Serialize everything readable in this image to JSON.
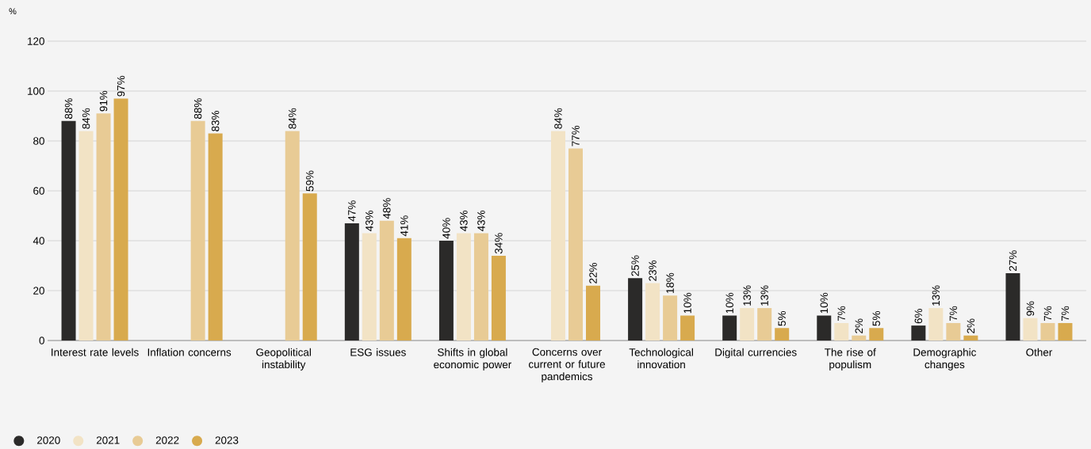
{
  "chart_data": {
    "type": "bar",
    "ylabel": "%",
    "categories": [
      "Interest rate levels",
      "Inflation concerns",
      "Geopolitical instability",
      "ESG issues",
      "Shifts in global economic power",
      "Concerns over current or future pandemics",
      "Technological innovation",
      "Digital currencies",
      "The rise of populism",
      "Demographic changes",
      "Other"
    ],
    "series": [
      {
        "name": "2020",
        "color": "#2b2a29",
        "values": [
          88,
          null,
          null,
          47,
          40,
          null,
          25,
          10,
          10,
          6,
          27
        ],
        "value_labels": [
          "88%",
          null,
          null,
          "47%",
          "40%",
          null,
          "25%",
          "10%",
          "10%",
          "6%",
          "27%"
        ]
      },
      {
        "name": "2021",
        "color": "#f2e3c5",
        "values": [
          84,
          null,
          null,
          43,
          43,
          84,
          23,
          13,
          7,
          13,
          9
        ],
        "value_labels": [
          "84%",
          null,
          null,
          "43%",
          "43%",
          "84%",
          "23%",
          "13%",
          "7%",
          "13%",
          "9%"
        ]
      },
      {
        "name": "2022",
        "color": "#e8cb95",
        "values": [
          91,
          88,
          84,
          48,
          43,
          77,
          18,
          13,
          2,
          7,
          7
        ],
        "value_labels": [
          "91%",
          "88%",
          "84%",
          "48%",
          "43%",
          "77%",
          "18%",
          "13%",
          "2%",
          "7%",
          "7%"
        ]
      },
      {
        "name": "2023",
        "color": "#d8aa4e",
        "values": [
          97,
          83,
          59,
          41,
          34,
          22,
          10,
          5,
          5,
          2,
          7
        ],
        "value_labels": [
          "97%",
          "83%",
          "59%",
          "41%",
          "34%",
          "22%",
          "10%",
          "5%",
          "5%",
          "2%",
          "7%"
        ]
      }
    ],
    "ylim": [
      0,
      120
    ],
    "yticks": [
      0,
      20,
      40,
      60,
      80,
      100,
      120
    ],
    "grid": "y",
    "legend": "bottom left"
  }
}
